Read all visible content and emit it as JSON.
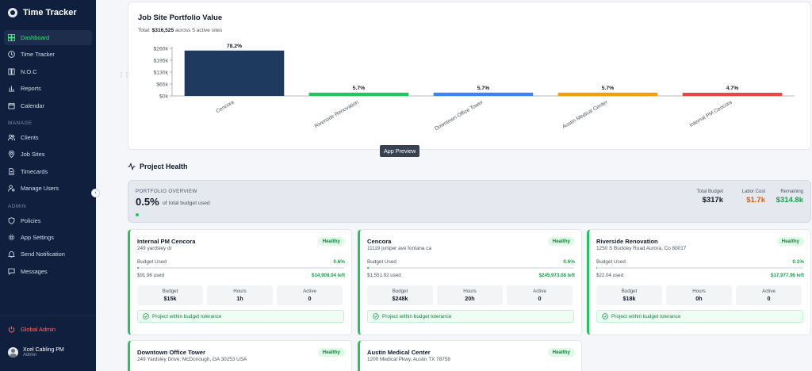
{
  "app": {
    "name": "Time Tracker"
  },
  "sidebar": {
    "items": [
      {
        "label": "Dashboard",
        "icon": "dashboard-icon",
        "active": true
      },
      {
        "label": "Time Tracker",
        "icon": "clock-icon"
      },
      {
        "label": "N.O.C",
        "icon": "book-icon"
      },
      {
        "label": "Reports",
        "icon": "bar-chart-icon"
      },
      {
        "label": "Calendar",
        "icon": "calendar-icon"
      }
    ],
    "manage_label": "MANAGE",
    "manage_items": [
      {
        "label": "Clients",
        "icon": "users-icon"
      },
      {
        "label": "Job Sites",
        "icon": "map-pin-icon"
      },
      {
        "label": "Timecards",
        "icon": "file-icon"
      },
      {
        "label": "Manage Users",
        "icon": "user-cog-icon"
      }
    ],
    "admin_label": "ADMIN",
    "admin_items": [
      {
        "label": "Policies",
        "icon": "shield-icon"
      },
      {
        "label": "App Settings",
        "icon": "gear-icon"
      },
      {
        "label": "Send Notification",
        "icon": "bell-icon"
      },
      {
        "label": "Messages",
        "icon": "message-icon"
      }
    ],
    "global_admin": "Global Admin",
    "user": {
      "name": "Xcel Cabling PM",
      "role": "Admin"
    }
  },
  "portfolio_chart": {
    "title": "Job Site Portfolio Value",
    "subtitle_prefix": "Total:",
    "subtitle_value": "$316,525",
    "subtitle_suffix": "across 5 active sites",
    "tooltip": "App Preview"
  },
  "chart_data": {
    "type": "bar",
    "title": "Job Site Portfolio Value",
    "categories": [
      "Cencora",
      "Riverside Renovation",
      "Downtown Office Tower",
      "Austin Medical Center",
      "Internal PM Cencora"
    ],
    "values": [
      248000,
      18000,
      18000,
      18000,
      15000
    ],
    "data_labels": [
      "78.2%",
      "5.7%",
      "5.7%",
      "5.7%",
      "4.7%"
    ],
    "colors": [
      "#1e3a5f",
      "#22c55e",
      "#3b82f6",
      "#f59e0b",
      "#ef4444"
    ],
    "yticks": [
      "$260k",
      "$195k",
      "$130k",
      "$65k",
      "$0k"
    ],
    "ylim": [
      0,
      260000
    ],
    "grid": false
  },
  "project_health": {
    "title": "Project Health",
    "overview": {
      "label": "PORTFOLIO OVERVIEW",
      "percent": "0.5%",
      "percent_desc": "of total budget used",
      "total_budget_label": "Total Budget",
      "total_budget": "$317k",
      "labor_cost_label": "Labor Cost",
      "labor_cost": "$1.7k",
      "remaining_label": "Remaining",
      "remaining": "$314.8k",
      "colors": {
        "labor": "#ea580c",
        "remaining": "#16a34a"
      }
    },
    "sites": [
      {
        "name": "Internal PM Cencora",
        "address": "249 yardsley dr",
        "status": "Healthy",
        "budget_used_label": "Budget Used",
        "budget_used_pct": "0.6%",
        "budget_used_fraction": 0.006,
        "used": "$91.96 used",
        "left": "$14,908.04 left",
        "budget_label": "Budget",
        "budget": "$15k",
        "hours_label": "Hours",
        "hours": "1h",
        "active_label": "Active",
        "active": "0",
        "note": "Project within budget tolerance"
      },
      {
        "name": "Cencora",
        "address": "11119 juniper ave fontana ca",
        "status": "Healthy",
        "budget_used_label": "Budget Used",
        "budget_used_pct": "0.6%",
        "budget_used_fraction": 0.006,
        "used": "$1,551.92 used",
        "left": "$245,973.08 left",
        "budget_label": "Budget",
        "budget": "$248k",
        "hours_label": "Hours",
        "hours": "20h",
        "active_label": "Active",
        "active": "0",
        "note": "Project within budget tolerance"
      },
      {
        "name": "Riverside Renovation",
        "address": "1250 S Buckley Road Aurora, Co 80017",
        "status": "Healthy",
        "budget_used_label": "Budget Used",
        "budget_used_pct": "0.1%",
        "budget_used_fraction": 0.001,
        "used": "$22.04 used",
        "left": "$17,977.96 left",
        "budget_label": "Budget",
        "budget": "$18k",
        "hours_label": "Hours",
        "hours": "0h",
        "active_label": "Active",
        "active": "0",
        "note": "Project within budget tolerance"
      },
      {
        "name": "Downtown Office Tower",
        "address": "249 Yardsley Drive, McDonough, GA 30253 USA",
        "status": "Healthy"
      },
      {
        "name": "Austin Medical Center",
        "address": "1200 Medical Pkwy, Austin TX 78758",
        "status": "Healthy"
      }
    ]
  }
}
